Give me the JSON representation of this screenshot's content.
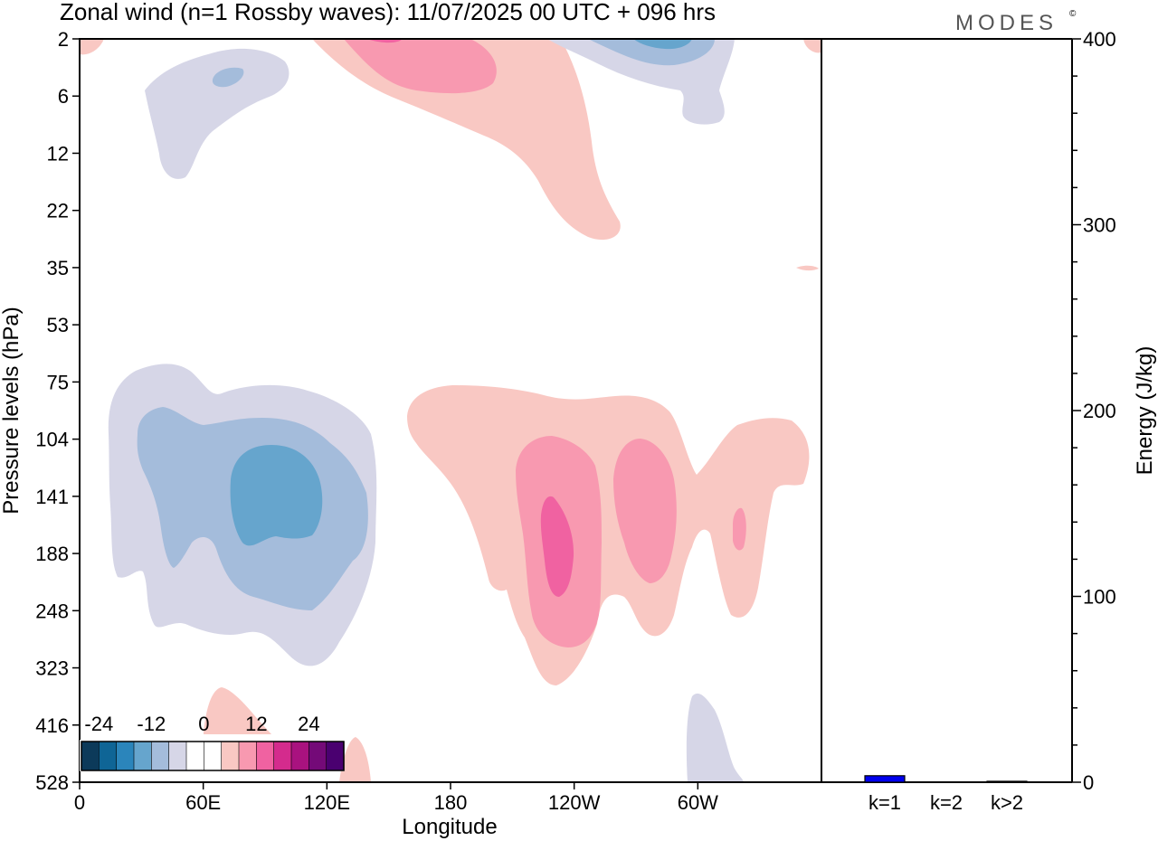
{
  "title": "Zonal wind (n=1 Rossby waves):  11/07/2025  00 UTC  + 096 hrs",
  "logo": "MODES",
  "logo_mark": "©",
  "chart_data": [
    {
      "type": "contour",
      "title": "Zonal wind (n=1 Rossby waves):  11/07/2025  00 UTC  + 096 hrs",
      "xlabel": "Longitude",
      "ylabel": "Pressure levels (hPa)",
      "x_ticks": [
        "0",
        "60E",
        "120E",
        "180",
        "120W",
        "60W"
      ],
      "y_ticks": [
        "2",
        "6",
        "12",
        "22",
        "35",
        "53",
        "75",
        "104",
        "141",
        "188",
        "248",
        "323",
        "416",
        "528"
      ],
      "contour_levels": [
        -28,
        -24,
        -20,
        -16,
        -12,
        -8,
        -4,
        0,
        4,
        8,
        12,
        16,
        20,
        24,
        28
      ],
      "colorbar_labels": [
        "-24",
        "-12",
        "0",
        "12",
        "24"
      ],
      "colorbar_colors": [
        "#0c3a5a",
        "#0f6596",
        "#2b85bb",
        "#66a5cd",
        "#a4bcdb",
        "#d6d6e7",
        "#ffffff",
        "#ffffff",
        "#f9c8c3",
        "#f899b0",
        "#f062a1",
        "#d42b8d",
        "#a9127f",
        "#740a78",
        "#4a0070"
      ],
      "features": [
        {
          "name": "negative-anomaly-upper-left",
          "sign": "negative",
          "max_level": -12
        },
        {
          "name": "positive-anomaly-upper-center",
          "sign": "positive",
          "max_level": 12
        },
        {
          "name": "negative-anomaly-upper-right",
          "sign": "negative",
          "max_level": -16
        },
        {
          "name": "negative-anomaly-mid-left",
          "sign": "negative",
          "max_level": -16
        },
        {
          "name": "positive-anomaly-mid-right",
          "sign": "positive",
          "max_level": 16
        }
      ]
    },
    {
      "type": "bar",
      "ylabel": "Energy (J/kg)",
      "ylim": [
        0,
        400
      ],
      "y_ticks": [
        "0",
        "100",
        "200",
        "300",
        "400"
      ],
      "categories": [
        "k=1",
        "k=2",
        "k>2"
      ],
      "values": [
        3.5,
        0,
        0.5
      ],
      "colors": [
        "#0000ee",
        "#000000",
        "#000000"
      ]
    }
  ]
}
